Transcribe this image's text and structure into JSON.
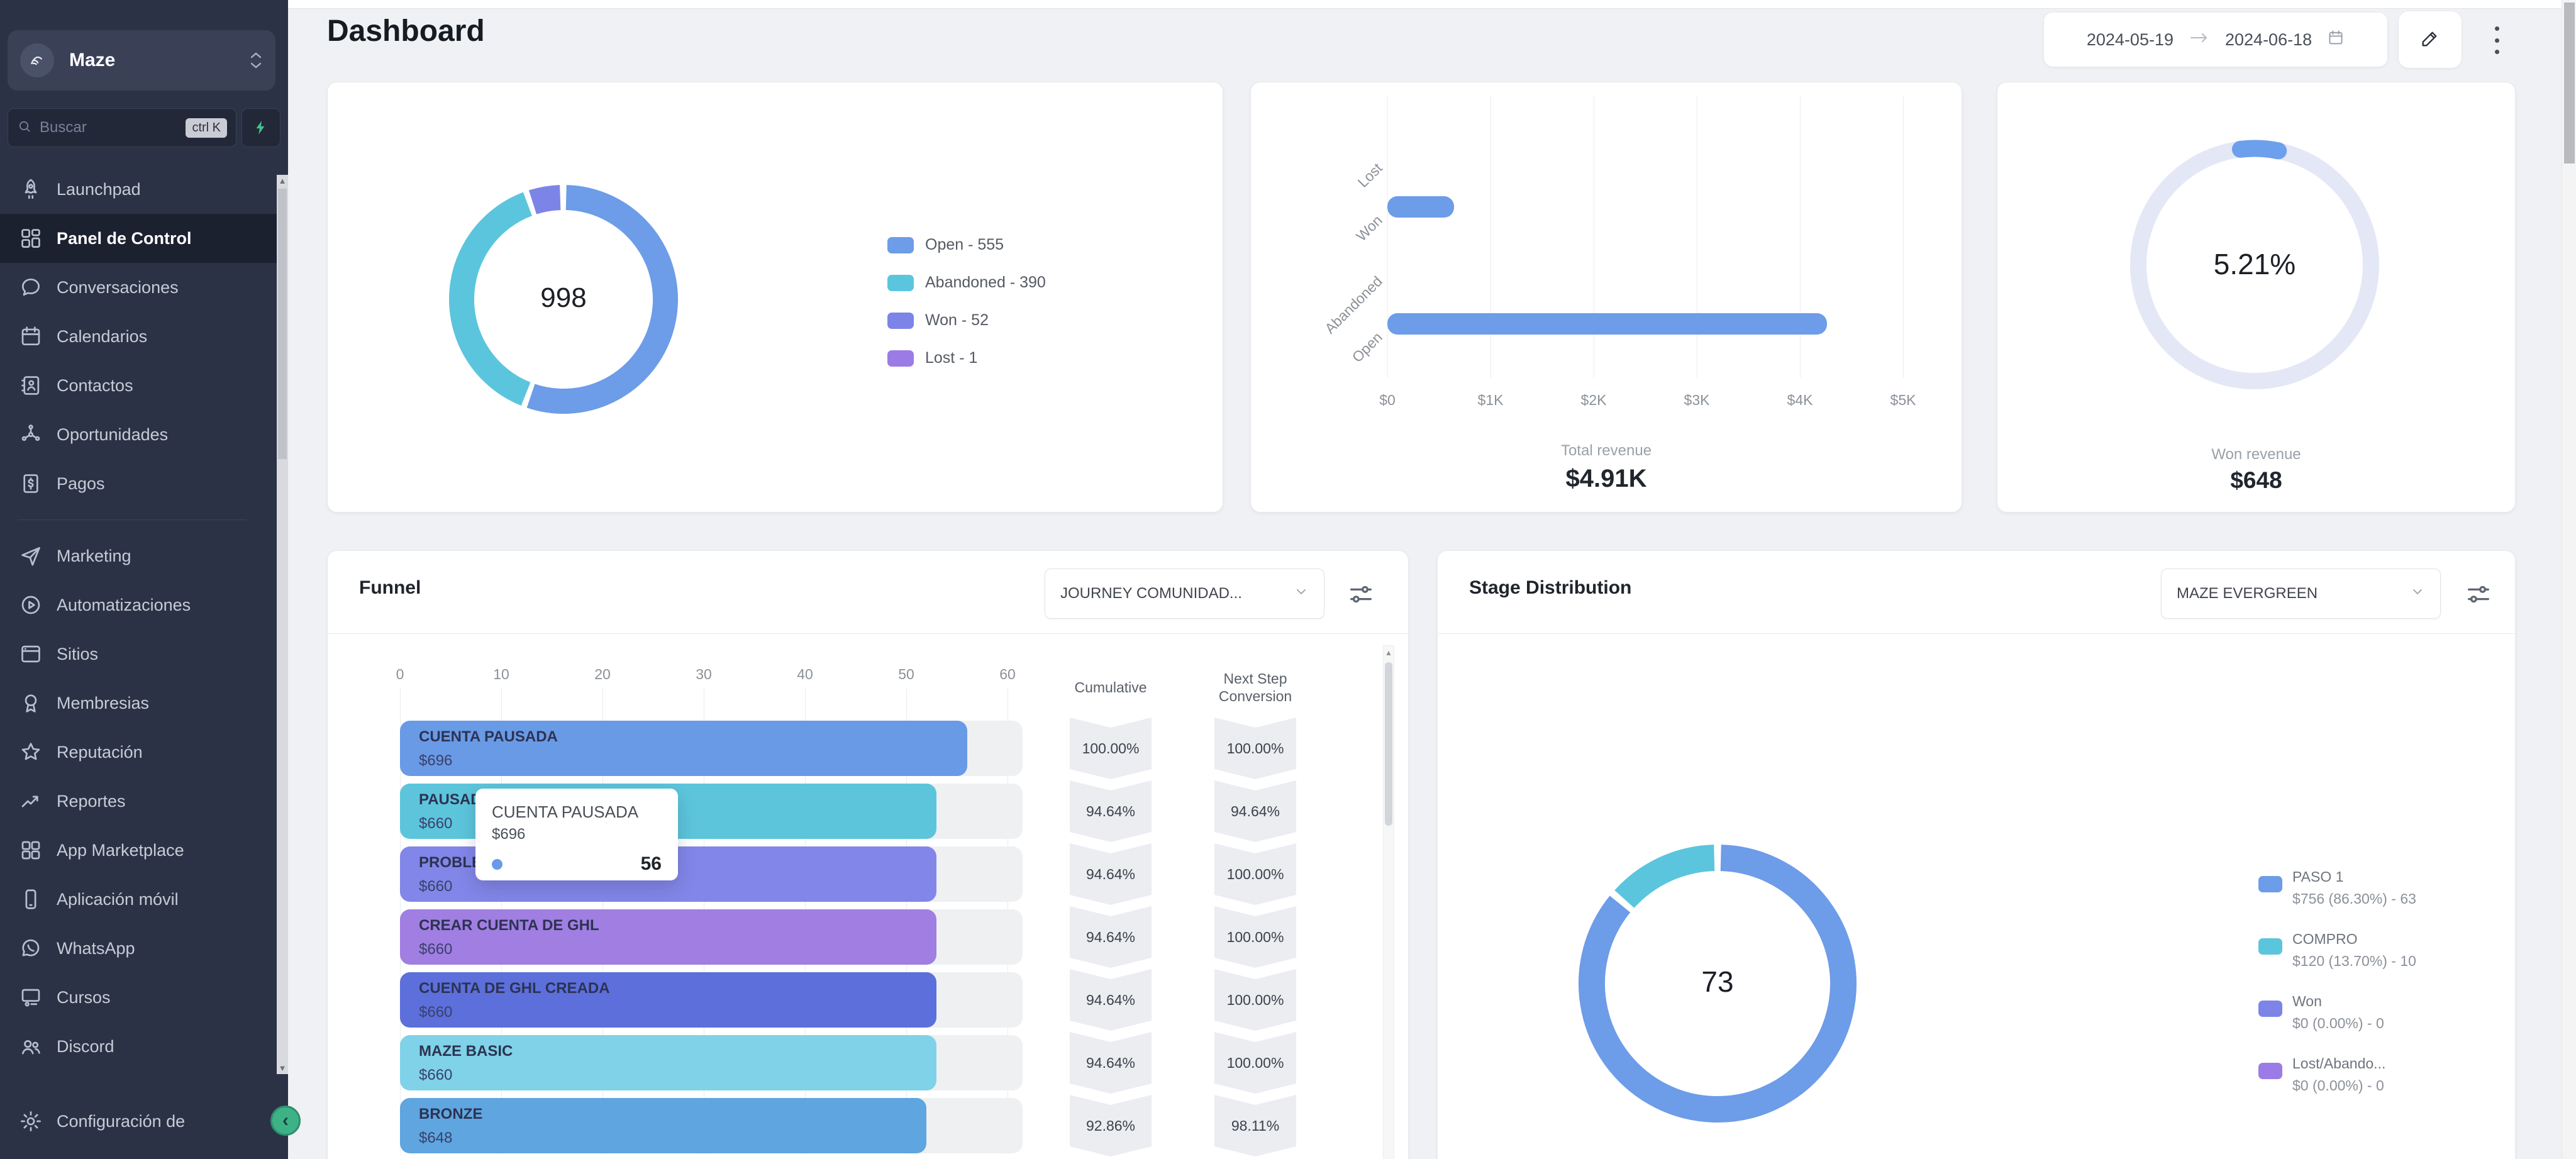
{
  "sidebar": {
    "workspace_name": "Maze",
    "search_placeholder": "Buscar",
    "search_shortcut": "ctrl K",
    "nav": [
      {
        "icon": "rocket-icon",
        "label": "Launchpad"
      },
      {
        "icon": "dashboard-icon",
        "label": "Panel de Control",
        "active": true
      },
      {
        "icon": "chat-icon",
        "label": "Conversaciones"
      },
      {
        "icon": "calendar-icon",
        "label": "Calendarios"
      },
      {
        "icon": "contacts-icon",
        "label": "Contactos"
      },
      {
        "icon": "network-icon",
        "label": "Oportunidades"
      },
      {
        "icon": "payments-icon",
        "label": "Pagos"
      },
      {
        "divider": true
      },
      {
        "icon": "send-icon",
        "label": "Marketing"
      },
      {
        "icon": "automation-icon",
        "label": "Automatizaciones"
      },
      {
        "icon": "sites-icon",
        "label": "Sitios"
      },
      {
        "icon": "membership-icon",
        "label": "Membresias"
      },
      {
        "icon": "star-icon",
        "label": "Reputación"
      },
      {
        "icon": "reports-icon",
        "label": "Reportes"
      },
      {
        "icon": "marketplace-icon",
        "label": "App Marketplace"
      },
      {
        "icon": "mobile-icon",
        "label": "Aplicación móvil"
      },
      {
        "icon": "whatsapp-icon",
        "label": "WhatsApp"
      },
      {
        "icon": "courses-icon",
        "label": "Cursos"
      },
      {
        "icon": "users-icon",
        "label": "Discord"
      }
    ],
    "footer_label": "Configuración de"
  },
  "header": {
    "title": "Dashboard",
    "date_from": "2024-05-19",
    "date_to": "2024-06-18"
  },
  "revenue_card": {
    "footer_label": "Total revenue",
    "footer_value": "$4.91K"
  },
  "won_card": {
    "value": "5.21%",
    "footer_label": "Won revenue",
    "footer_value": "$648"
  },
  "funnel_card": {
    "title": "Funnel",
    "dropdown_value": "JOURNEY COMUNIDAD...",
    "columns": {
      "cumulative": "Cumulative",
      "next_step_line1": "Next Step",
      "next_step_line2": "Conversion"
    },
    "tooltip": {
      "title": "CUENTA PAUSADA",
      "amount": "$696",
      "value": "56"
    }
  },
  "stage_card": {
    "title": "Stage Distribution",
    "dropdown_value": "MAZE EVERGREEN"
  },
  "chart_data": [
    {
      "type": "pie",
      "name": "opportunities-status-donut",
      "center_label": "998",
      "legend_position": "right",
      "segments": [
        {
          "label": "Open - 555",
          "stage": "Open",
          "value": 555,
          "color": "#6d9ce8"
        },
        {
          "label": "Abandoned - 390",
          "stage": "Abandoned",
          "value": 390,
          "color": "#5cc5de"
        },
        {
          "label": "Won - 52",
          "stage": "Won",
          "value": 52,
          "color": "#7d84e8"
        },
        {
          "label": "Lost - 1",
          "stage": "Lost",
          "value": 1,
          "color": "#9b7ce6"
        }
      ]
    },
    {
      "type": "bar",
      "name": "revenue-by-status-bar",
      "orientation": "horizontal",
      "categories": [
        "Lost",
        "Won",
        "Abandoned",
        "Open"
      ],
      "values": [
        0,
        648,
        0,
        4262
      ],
      "xticks": [
        "$0",
        "$1K",
        "$2K",
        "$3K",
        "$4K",
        "$5K"
      ],
      "xlim": [
        0,
        5000
      ],
      "bar_color": "#6d9ce8",
      "grid": true,
      "title": "Total revenue",
      "total_label": "$4.91K"
    },
    {
      "type": "gauge",
      "name": "won-revenue-gauge",
      "percent": 5.21,
      "label": "5.21%",
      "arc_color": "#6da0ec",
      "track_color": "#e4e7f6",
      "footer": "Won revenue $648"
    },
    {
      "type": "funnel",
      "name": "journey-funnel",
      "xticks": [
        0,
        10,
        20,
        30,
        40,
        50,
        60
      ],
      "xlim": [
        0,
        60
      ],
      "rows": [
        {
          "stage": "CUENTA PAUSADA",
          "amount": "$696",
          "value": 56,
          "cumulative": "100.00%",
          "next_step": "100.00%",
          "color": "#699ae6"
        },
        {
          "stage": "PAUSAD",
          "amount": "$660",
          "value": 53,
          "cumulative": "94.64%",
          "next_step": "94.64%",
          "color": "#5cc5dc"
        },
        {
          "stage": "PROBLE",
          "amount": "$660",
          "value": 53,
          "cumulative": "94.64%",
          "next_step": "100.00%",
          "color": "#8286e8"
        },
        {
          "stage": "CREAR CUENTA DE GHL",
          "amount": "$660",
          "value": 53,
          "cumulative": "94.64%",
          "next_step": "100.00%",
          "color": "#a07ee2"
        },
        {
          "stage": "CUENTA DE GHL CREADA",
          "amount": "$660",
          "value": 53,
          "cumulative": "94.64%",
          "next_step": "100.00%",
          "color": "#5c6fdb"
        },
        {
          "stage": "MAZE BASIC",
          "amount": "$660",
          "value": 53,
          "cumulative": "94.64%",
          "next_step": "100.00%",
          "color": "#7fd2e8"
        },
        {
          "stage": "BRONZE",
          "amount": "$648",
          "value": 52,
          "cumulative": "92.86%",
          "next_step": "98.11%",
          "color": "#5fa5e0"
        }
      ]
    },
    {
      "type": "pie",
      "name": "stage-distribution-donut",
      "center_label": "73",
      "legend_position": "right",
      "segments": [
        {
          "label": "PASO 1",
          "sub": "$756 (86.30%) - 63",
          "value": 63,
          "color": "#6d9ce8"
        },
        {
          "label": "COMPRO",
          "sub": "$120 (13.70%) - 10",
          "value": 10,
          "color": "#5cc5de"
        },
        {
          "label": "Won",
          "sub": "$0 (0.00%) - 0",
          "value": 0,
          "color": "#7d84e8"
        },
        {
          "label": "Lost/Abando...",
          "sub": "$0 (0.00%) - 0",
          "value": 0,
          "color": "#9b7ce6"
        }
      ]
    }
  ]
}
